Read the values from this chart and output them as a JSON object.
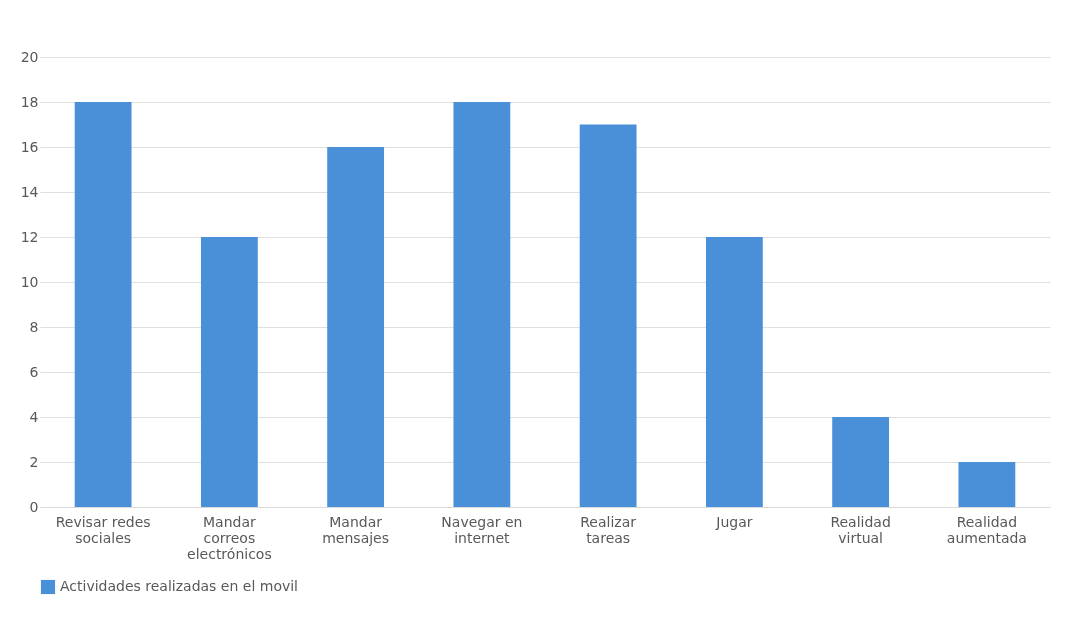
{
  "chart_data": {
    "type": "bar",
    "categories": [
      "Revisar redes sociales",
      "Mandar correos electrónicos",
      "Mandar mensajes",
      "Navegar en internet",
      "Realizar tareas",
      "Jugar",
      "Realidad virtual",
      "Realidad aumentada"
    ],
    "series": [
      {
        "name": "Actividades realizadas en el movil",
        "color": "#4a90d9",
        "values": [
          18,
          12,
          16,
          18,
          17,
          12,
          4,
          2
        ]
      }
    ],
    "ylim": [
      0,
      20
    ],
    "yticks": [
      0,
      2,
      4,
      6,
      8,
      10,
      12,
      14,
      16,
      18,
      20
    ],
    "grid": "y",
    "legend": "bottom"
  }
}
